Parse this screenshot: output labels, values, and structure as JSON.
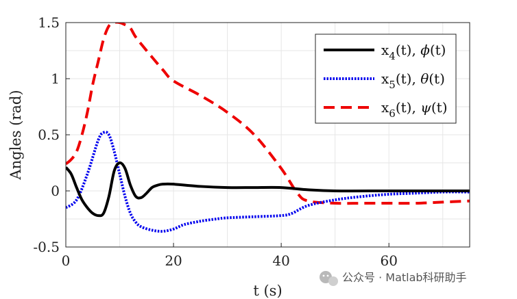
{
  "chart_data": {
    "type": "line",
    "title": "",
    "xlabel": "t (s)",
    "ylabel": "Angles (rad)",
    "xlim": [
      0,
      75
    ],
    "ylim": [
      -0.5,
      1.5
    ],
    "xticks": [
      0,
      20,
      40,
      60
    ],
    "xtick_labels": [
      "0",
      "20",
      "40",
      "60"
    ],
    "yticks": [
      -0.5,
      0,
      0.5,
      1,
      1.5
    ],
    "ytick_labels": [
      "-0.5",
      "0",
      "0.5",
      "1",
      "1.5"
    ],
    "grid": true,
    "legend_position": "top-right",
    "series": [
      {
        "name": "x4(t), phi(t)",
        "label_main": "x",
        "label_sub": "4",
        "label_rest": "(t), ",
        "label_greek": "ϕ",
        "label_end": "(t)",
        "color": "#000000",
        "style": "solid",
        "x": [
          0,
          1,
          2,
          3,
          4,
          5,
          6,
          7,
          8,
          9,
          10,
          11,
          12,
          13,
          14,
          15,
          16,
          17,
          18,
          20,
          25,
          30,
          35,
          40,
          45,
          50,
          60,
          70,
          75
        ],
        "y": [
          0.21,
          0.15,
          0.03,
          -0.08,
          -0.15,
          -0.2,
          -0.22,
          -0.2,
          -0.05,
          0.18,
          0.25,
          0.2,
          0.05,
          -0.05,
          -0.06,
          -0.02,
          0.03,
          0.05,
          0.06,
          0.06,
          0.04,
          0.03,
          0.03,
          0.03,
          0.01,
          0.0,
          0.0,
          0.0,
          0.0
        ]
      },
      {
        "name": "x5(t), theta(t)",
        "label_main": "x",
        "label_sub": "5",
        "label_rest": "(t), ",
        "label_greek": "θ",
        "label_end": "(t)",
        "color": "#0000ee",
        "style": "dotted",
        "x": [
          0,
          2,
          4,
          6,
          7,
          8,
          9,
          10,
          11,
          12,
          13,
          14,
          16,
          18,
          20,
          22,
          25,
          28,
          30,
          35,
          40,
          42,
          45,
          50,
          55,
          60,
          65,
          70,
          75
        ],
        "y": [
          -0.15,
          -0.08,
          0.15,
          0.45,
          0.52,
          0.5,
          0.35,
          0.15,
          -0.05,
          -0.2,
          -0.28,
          -0.32,
          -0.35,
          -0.36,
          -0.34,
          -0.3,
          -0.27,
          -0.25,
          -0.24,
          -0.23,
          -0.22,
          -0.2,
          -0.13,
          -0.08,
          -0.05,
          -0.03,
          -0.02,
          -0.01,
          -0.01
        ]
      },
      {
        "name": "x6(t), psi(t)",
        "label_main": "x",
        "label_sub": "6",
        "label_rest": "(t), ",
        "label_greek": "ψ",
        "label_end": "(t)",
        "color": "#ee0000",
        "style": "dashed",
        "x": [
          0,
          1,
          2,
          3,
          4,
          5,
          6,
          7,
          8,
          9,
          10,
          11,
          12,
          13,
          15,
          18,
          20,
          25,
          30,
          35,
          40,
          43,
          45,
          50,
          55,
          60,
          65,
          70,
          75
        ],
        "y": [
          0.24,
          0.28,
          0.35,
          0.5,
          0.7,
          0.95,
          1.15,
          1.35,
          1.47,
          1.5,
          1.5,
          1.48,
          1.45,
          1.37,
          1.25,
          1.08,
          0.98,
          0.85,
          0.7,
          0.5,
          0.2,
          -0.02,
          -0.09,
          -0.11,
          -0.11,
          -0.11,
          -0.11,
          -0.1,
          -0.09
        ]
      }
    ]
  },
  "watermark": {
    "text": "公众号 · Matlab科研助手",
    "icon": "wechat-icon"
  }
}
